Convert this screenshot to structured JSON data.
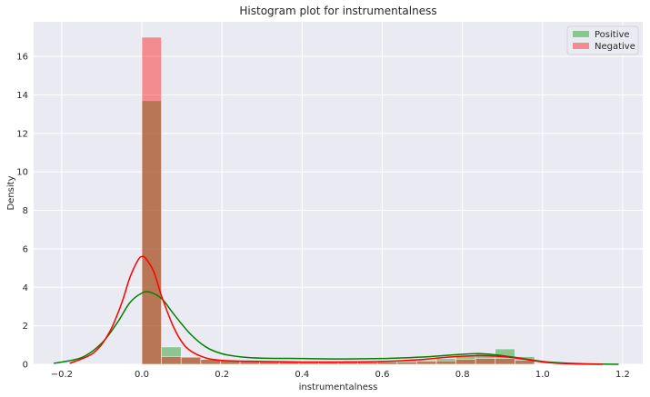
{
  "chart_data": {
    "type": "histogram",
    "title": "Histogram plot for instrumentalness",
    "xlabel": "instrumentalness",
    "ylabel": "Density",
    "xlim": [
      -0.27,
      1.25
    ],
    "ylim": [
      0,
      17.8
    ],
    "xticks": [
      -0.2,
      0.0,
      0.2,
      0.4,
      0.6,
      0.8,
      1.0,
      1.2
    ],
    "xtick_labels": [
      "−0.2",
      "0.0",
      "0.2",
      "0.4",
      "0.6",
      "0.8",
      "1.0",
      "1.2"
    ],
    "yticks": [
      0,
      2,
      4,
      6,
      8,
      10,
      12,
      14,
      16
    ],
    "ytick_labels": [
      "0",
      "2",
      "4",
      "6",
      "8",
      "10",
      "12",
      "14",
      "16"
    ],
    "grid": true,
    "legend_position": "top-right",
    "bin_edges": [
      0.0,
      0.049,
      0.098,
      0.147,
      0.196,
      0.245,
      0.294,
      0.343,
      0.392,
      0.441,
      0.49,
      0.539,
      0.588,
      0.637,
      0.686,
      0.735,
      0.784,
      0.833,
      0.882,
      0.931,
      0.98
    ],
    "series": [
      {
        "name": "Positive",
        "color": "#2ca02c",
        "bar_alpha": 0.5,
        "line_color": "#008000",
        "hist": [
          13.7,
          0.9,
          0.35,
          0.25,
          0.18,
          0.15,
          0.17,
          0.13,
          0.15,
          0.15,
          0.13,
          0.15,
          0.2,
          0.22,
          0.22,
          0.3,
          0.45,
          0.55,
          0.8,
          0.4
        ],
        "kde_x": [
          -0.22,
          -0.15,
          -0.1,
          -0.06,
          -0.03,
          0.0,
          0.02,
          0.05,
          0.08,
          0.12,
          0.16,
          0.2,
          0.25,
          0.3,
          0.4,
          0.5,
          0.6,
          0.7,
          0.75,
          0.8,
          0.85,
          0.9,
          0.95,
          1.0,
          1.05,
          1.1,
          1.15,
          1.19
        ],
        "kde_y": [
          0.05,
          0.35,
          1.1,
          2.2,
          3.2,
          3.7,
          3.75,
          3.4,
          2.6,
          1.6,
          0.9,
          0.55,
          0.38,
          0.32,
          0.3,
          0.28,
          0.3,
          0.38,
          0.45,
          0.52,
          0.55,
          0.45,
          0.3,
          0.15,
          0.07,
          0.03,
          0.01,
          0.0
        ]
      },
      {
        "name": "Negative",
        "color": "#ff0000",
        "bar_alpha": 0.4,
        "line_color": "#ff0000",
        "hist": [
          17.0,
          0.4,
          0.38,
          0.25,
          0.2,
          0.15,
          0.14,
          0.12,
          0.1,
          0.1,
          0.1,
          0.1,
          0.12,
          0.12,
          0.15,
          0.18,
          0.25,
          0.3,
          0.3,
          0.2
        ],
        "kde_x": [
          -0.18,
          -0.12,
          -0.08,
          -0.05,
          -0.03,
          -0.01,
          0.0,
          0.01,
          0.03,
          0.05,
          0.08,
          0.11,
          0.15,
          0.2,
          0.3,
          0.4,
          0.5,
          0.6,
          0.7,
          0.75,
          0.8,
          0.85,
          0.9,
          0.95,
          1.0,
          1.05,
          1.1,
          1.15
        ],
        "kde_y": [
          0.05,
          0.6,
          1.7,
          3.2,
          4.5,
          5.4,
          5.6,
          5.5,
          4.8,
          3.5,
          1.9,
          0.9,
          0.4,
          0.2,
          0.15,
          0.12,
          0.12,
          0.15,
          0.25,
          0.35,
          0.42,
          0.45,
          0.4,
          0.28,
          0.12,
          0.04,
          0.01,
          0.0
        ]
      }
    ]
  }
}
